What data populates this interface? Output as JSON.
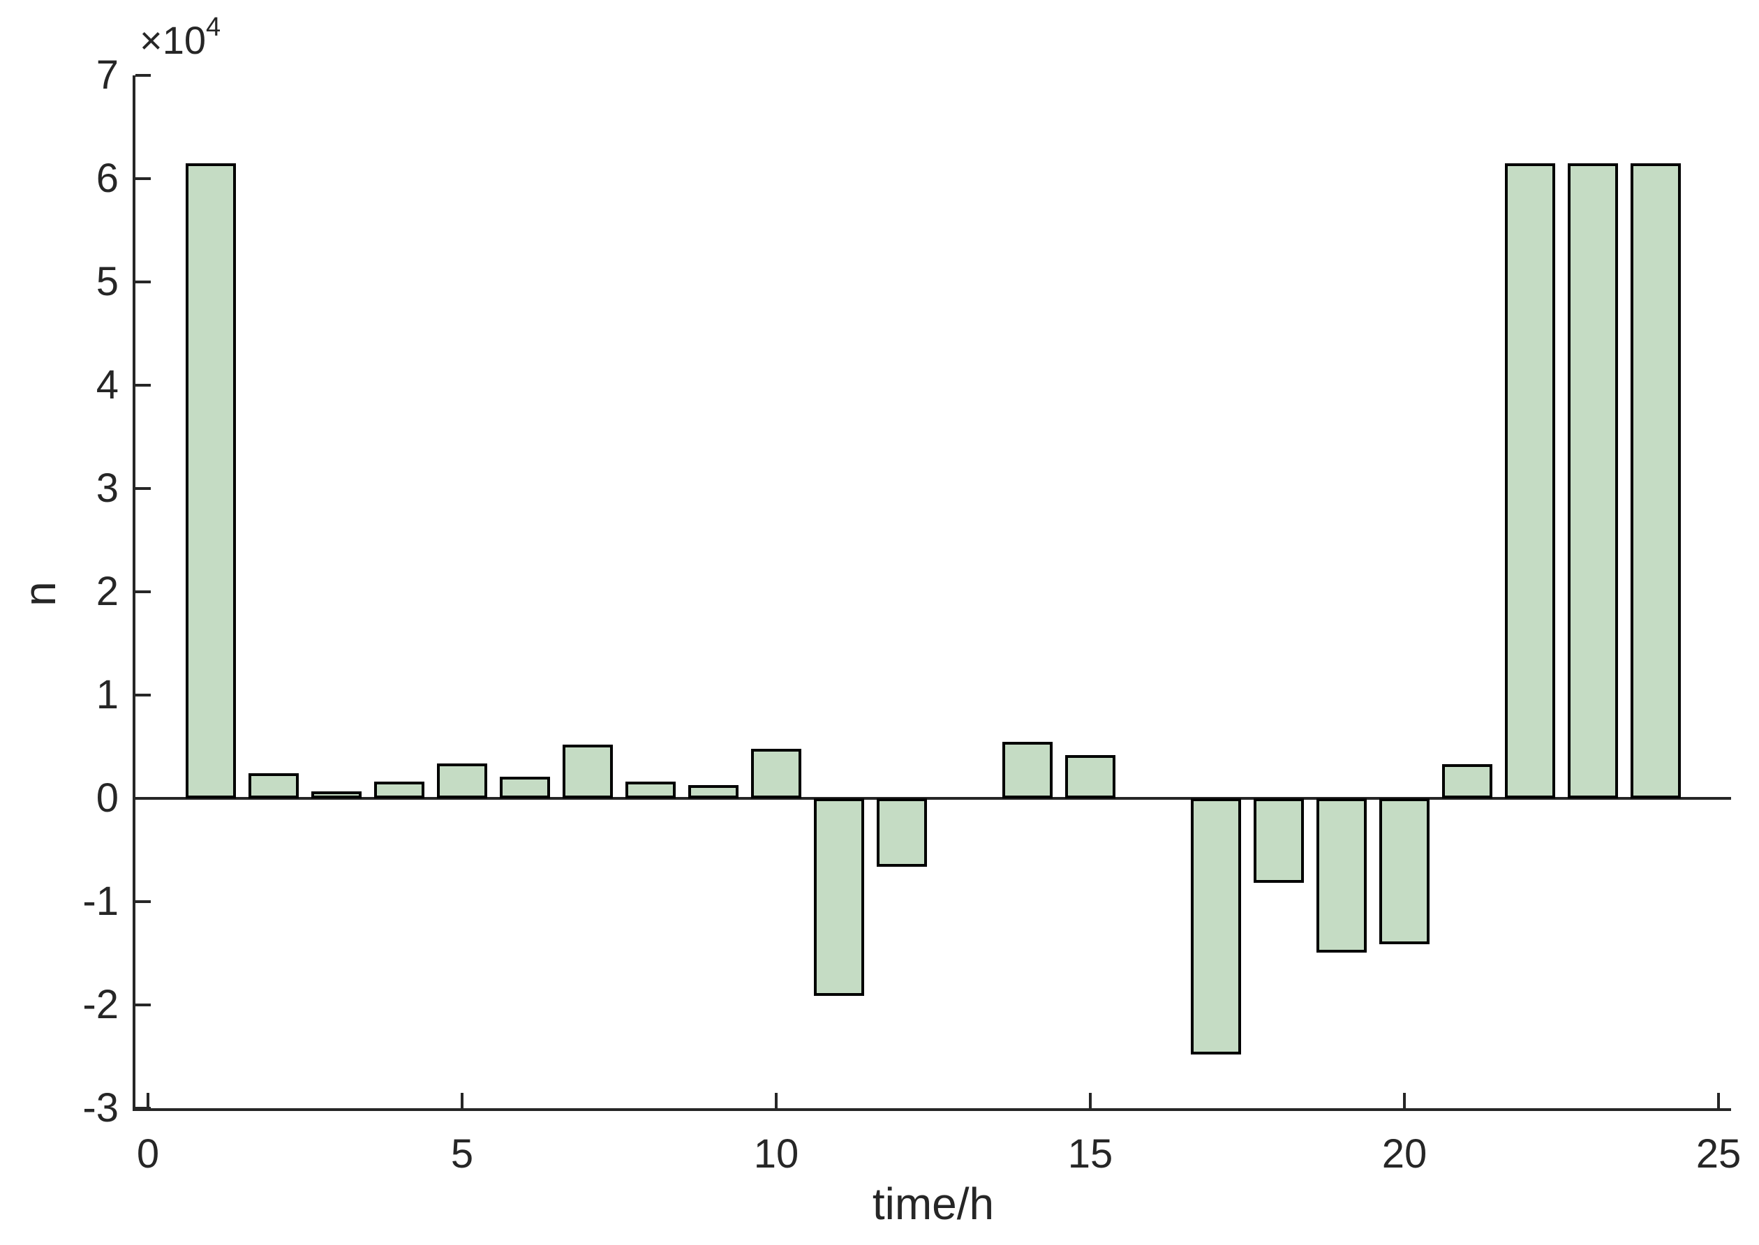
{
  "figure": {
    "background": "#ffffff",
    "text_color": "#262626"
  },
  "chart_data": {
    "type": "bar",
    "title": "",
    "xlabel": "time/h",
    "ylabel": "n",
    "y_multiplier_label": "×10",
    "y_multiplier_exponent": "4",
    "values_scale": 10000,
    "x": [
      1,
      2,
      3,
      4,
      5,
      6,
      7,
      8,
      9,
      10,
      11,
      12,
      13,
      14,
      15,
      16,
      17,
      18,
      19,
      20,
      21,
      22,
      23,
      24
    ],
    "values": [
      6.15,
      0.24,
      0.07,
      0.16,
      0.34,
      0.21,
      0.52,
      0.16,
      0.13,
      0.48,
      -1.91,
      -0.66,
      0,
      0.55,
      0.42,
      0,
      -2.48,
      -0.82,
      -1.49,
      -1.41,
      0.33,
      6.15,
      6.15,
      6.15
    ],
    "xlim": [
      -0.2,
      25.2
    ],
    "ylim": [
      -3,
      7
    ],
    "xticks": [
      0,
      5,
      10,
      15,
      20,
      25
    ],
    "xtick_labels": [
      "0",
      "5",
      "10",
      "15",
      "20",
      "25"
    ],
    "yticks": [
      -3,
      -2,
      -1,
      0,
      1,
      2,
      3,
      4,
      5,
      6,
      7
    ],
    "ytick_labels": [
      "-3",
      "-2",
      "-1",
      "0",
      "1",
      "2",
      "3",
      "4",
      "5",
      "6",
      "7"
    ],
    "bar_width": 0.8,
    "bar_fill_color": "#c5dcc4",
    "bar_edge_color": "#000000",
    "axis_color": "#262626",
    "grid": false,
    "legend": null
  }
}
